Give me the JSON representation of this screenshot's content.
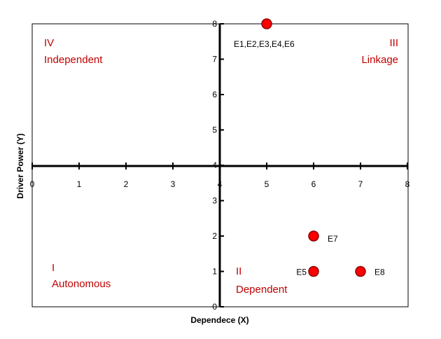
{
  "chart_data": {
    "type": "scatter",
    "xlabel": "Dependece (X)",
    "ylabel": "Driver Power (Y)",
    "xlim": [
      0,
      8
    ],
    "ylim": [
      0,
      8
    ],
    "x_ticks": [
      "0",
      "1",
      "2",
      "3",
      "4",
      "5",
      "6",
      "7",
      "8"
    ],
    "y_ticks": [
      "0",
      "1",
      "2",
      "3",
      "4",
      "5",
      "6",
      "7",
      "8"
    ],
    "grid": false,
    "quadrants": [
      {
        "numeral": "IV",
        "name": "Independent"
      },
      {
        "numeral": "III",
        "name": "Linkage"
      },
      {
        "numeral": "I",
        "name": "Autonomous"
      },
      {
        "numeral": "II",
        "name": "Dependent"
      }
    ],
    "points": [
      {
        "x": 5,
        "y": 8,
        "label": "E1,E2,E3,E4,E6"
      },
      {
        "x": 6,
        "y": 2,
        "label": "E7"
      },
      {
        "x": 6,
        "y": 1,
        "label": "E5"
      },
      {
        "x": 7,
        "y": 1,
        "label": "E8"
      }
    ],
    "colors": {
      "marker": "#ff0000",
      "marker_edge": "#8b0000",
      "quadrant_text": "#c00000",
      "axis": "#000000"
    }
  }
}
